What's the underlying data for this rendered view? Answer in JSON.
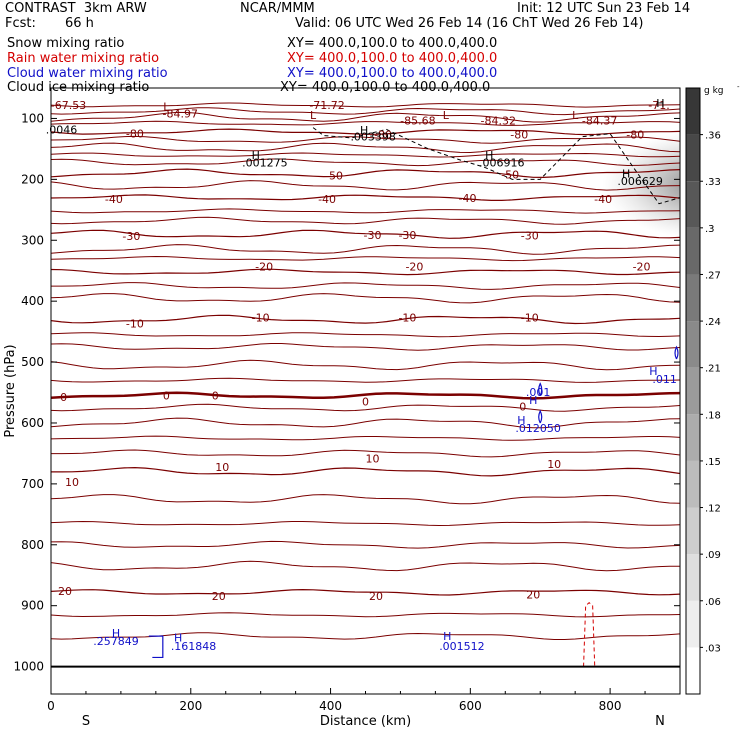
{
  "header": {
    "project": "CONTRAST  3km ARW",
    "center": "NCAR/MMM",
    "init": "Init: 12 UTC Sun 23 Feb 14",
    "fcst_label": "Fcst:",
    "fcst_value": "66 h",
    "valid": "Valid: 06 UTC Wed 26 Feb 14 (16 ChT Wed 26 Feb 14)"
  },
  "fields": [
    {
      "name": "Snow mixing ratio",
      "xy": "XY= 400.0,100.0 to 400.0,400.0",
      "color": "#000000"
    },
    {
      "name": "Rain water mixing ratio",
      "xy": "XY= 400.0,100.0 to 400.0,400.0",
      "color": "#d40000"
    },
    {
      "name": "Cloud water mixing ratio",
      "xy": "XY= 400.0,100.0 to 400.0,400.0",
      "color": "#1010c8"
    },
    {
      "name": "Cloud ice mixing ratio",
      "xy": "XY= 400.0,100.0 to 400.0,400.0",
      "color": "#000000"
    }
  ],
  "chart_data": {
    "type": "cross-section contour",
    "xlabel": "Distance (km)",
    "ylabel": "Pressure (hPa)",
    "xlim": [
      0,
      900
    ],
    "ylim": [
      1045,
      50
    ],
    "x_ticks": [
      "0",
      "200",
      "400",
      "600",
      "800"
    ],
    "x_tick_values": [
      0,
      200,
      400,
      600,
      800
    ],
    "y_ticks": [
      "100",
      "200",
      "300",
      "400",
      "500",
      "600",
      "700",
      "800",
      "900",
      "1000"
    ],
    "y_tick_values": [
      100,
      200,
      300,
      400,
      500,
      600,
      700,
      800,
      900,
      1000
    ],
    "x_end_labels": {
      "left": "S",
      "right": "N"
    },
    "colorbar": {
      "unit": "g kg",
      "unit_exp": "-1",
      "ticks": [
        ".03",
        ".06",
        ".09",
        ".12",
        ".15",
        ".18",
        ".21",
        ".24",
        ".27",
        ".3",
        ".33",
        ".36"
      ],
      "tick_values": [
        0.03,
        0.06,
        0.09,
        0.12,
        0.15,
        0.18,
        0.21,
        0.24,
        0.27,
        0.3,
        0.33,
        0.36
      ],
      "range": [
        0,
        0.39
      ]
    },
    "temperature_contours": [
      {
        "label": "-80",
        "p": 122
      },
      {
        "label": "-50",
        "p": 190
      },
      {
        "label": "-40",
        "p": 230
      },
      {
        "label": "-30",
        "p": 290
      },
      {
        "label": "-20",
        "p": 352
      },
      {
        "label": "-10",
        "p": 430
      },
      {
        "label": "0",
        "p": 555
      },
      {
        "label": "10",
        "p": 680
      },
      {
        "label": "20",
        "p": 878
      }
    ],
    "temperature_labels": [
      {
        "text": "-67.53",
        "x": 25,
        "p": 78
      },
      {
        "text": "-84.97",
        "x": 185,
        "p": 92
      },
      {
        "text": "-71.72",
        "x": 395,
        "p": 78
      },
      {
        "text": "-85.68",
        "x": 525,
        "p": 103
      },
      {
        "text": "-84.32",
        "x": 640,
        "p": 103
      },
      {
        "text": "-84.37",
        "x": 785,
        "p": 103
      },
      {
        "text": "-71.",
        "x": 870,
        "p": 78
      },
      {
        "text": "-80",
        "x": 120,
        "p": 125
      },
      {
        "text": "-80",
        "x": 475,
        "p": 126
      },
      {
        "text": "-80",
        "x": 670,
        "p": 126
      },
      {
        "text": "-80",
        "x": 836,
        "p": 126
      },
      {
        "text": "-50",
        "x": 405,
        "p": 194
      },
      {
        "text": "-50",
        "x": 657,
        "p": 192
      },
      {
        "text": "-40",
        "x": 90,
        "p": 232
      },
      {
        "text": "-40",
        "x": 395,
        "p": 232
      },
      {
        "text": "-40",
        "x": 596,
        "p": 231
      },
      {
        "text": "-40",
        "x": 790,
        "p": 232
      },
      {
        "text": "-30",
        "x": 115,
        "p": 293
      },
      {
        "text": "-30",
        "x": 460,
        "p": 291
      },
      {
        "text": "-30",
        "x": 510,
        "p": 291
      },
      {
        "text": "-30",
        "x": 685,
        "p": 292
      },
      {
        "text": "-20",
        "x": 305,
        "p": 343
      },
      {
        "text": "-20",
        "x": 520,
        "p": 343
      },
      {
        "text": "-20",
        "x": 845,
        "p": 343
      },
      {
        "text": "-10",
        "x": 120,
        "p": 437
      },
      {
        "text": "-10",
        "x": 300,
        "p": 427
      },
      {
        "text": "-10",
        "x": 510,
        "p": 427
      },
      {
        "text": "-10",
        "x": 685,
        "p": 427
      },
      {
        "text": "0",
        "x": 18,
        "p": 557
      },
      {
        "text": "0",
        "x": 165,
        "p": 555
      },
      {
        "text": "0",
        "x": 235,
        "p": 555
      },
      {
        "text": "0",
        "x": 450,
        "p": 565
      },
      {
        "text": "0",
        "x": 675,
        "p": 573
      },
      {
        "text": "10",
        "x": 245,
        "p": 672
      },
      {
        "text": "10",
        "x": 460,
        "p": 658
      },
      {
        "text": "10",
        "x": 720,
        "p": 667
      },
      {
        "text": "10",
        "x": 30,
        "p": 697
      },
      {
        "text": "20",
        "x": 20,
        "p": 876
      },
      {
        "text": "20",
        "x": 240,
        "p": 884
      },
      {
        "text": "20",
        "x": 465,
        "p": 884
      },
      {
        "text": "20",
        "x": 690,
        "p": 882
      }
    ],
    "extrema_labels": [
      {
        "text": "L",
        "x": 165,
        "p": 80,
        "color": "#7b0000"
      },
      {
        "text": "L",
        "x": 375,
        "p": 94,
        "color": "#7b0000"
      },
      {
        "text": "L",
        "x": 565,
        "p": 94,
        "color": "#7b0000"
      },
      {
        "text": "L",
        "x": 750,
        "p": 94,
        "color": "#7b0000"
      },
      {
        "text": "H",
        "x": 448,
        "p": 119,
        "color": "#000000"
      },
      {
        "text": "H",
        "x": 293,
        "p": 160,
        "color": "#000000"
      },
      {
        "text": "H",
        "x": 627,
        "p": 160,
        "color": "#000000"
      },
      {
        "text": "H",
        "x": 823,
        "p": 190,
        "color": "#000000"
      },
      {
        "text": "H",
        "x": 872,
        "p": 75,
        "color": "#000000"
      },
      {
        "text": "H",
        "x": 673,
        "p": 595,
        "color": "#1010c8"
      },
      {
        "text": "H",
        "x": 690,
        "p": 562,
        "color": "#1010c8"
      },
      {
        "text": "H",
        "x": 862,
        "p": 515,
        "color": "#1010c8"
      },
      {
        "text": "H",
        "x": 93,
        "p": 945,
        "color": "#1010c8"
      },
      {
        "text": "H",
        "x": 182,
        "p": 952,
        "color": "#1010c8"
      },
      {
        "text": "H",
        "x": 567,
        "p": 950,
        "color": "#1010c8"
      }
    ],
    "value_labels": [
      {
        "text": ".0046",
        "x": 15,
        "p": 118,
        "color": "#000000"
      },
      {
        "text": ".003398",
        "x": 461,
        "p": 130,
        "color": "#000000"
      },
      {
        "text": ".001275",
        "x": 306,
        "p": 172,
        "color": "#000000"
      },
      {
        "text": ".006916",
        "x": 645,
        "p": 172,
        "color": "#000000"
      },
      {
        "text": ".006629",
        "x": 843,
        "p": 203,
        "color": "#000000"
      },
      {
        "text": ".001",
        "x": 697,
        "p": 549,
        "color": "#1010c8"
      },
      {
        "text": ".012050",
        "x": 697,
        "p": 608,
        "color": "#1010c8"
      },
      {
        "text": ".011",
        "x": 878,
        "p": 528,
        "color": "#1010c8"
      },
      {
        "text": ".257849",
        "x": 93,
        "p": 958,
        "color": "#1010c8"
      },
      {
        "text": ".161848",
        "x": 204,
        "p": 966,
        "color": "#1010c8"
      },
      {
        "text": ".001512",
        "x": 588,
        "p": 966,
        "color": "#1010c8"
      }
    ]
  }
}
